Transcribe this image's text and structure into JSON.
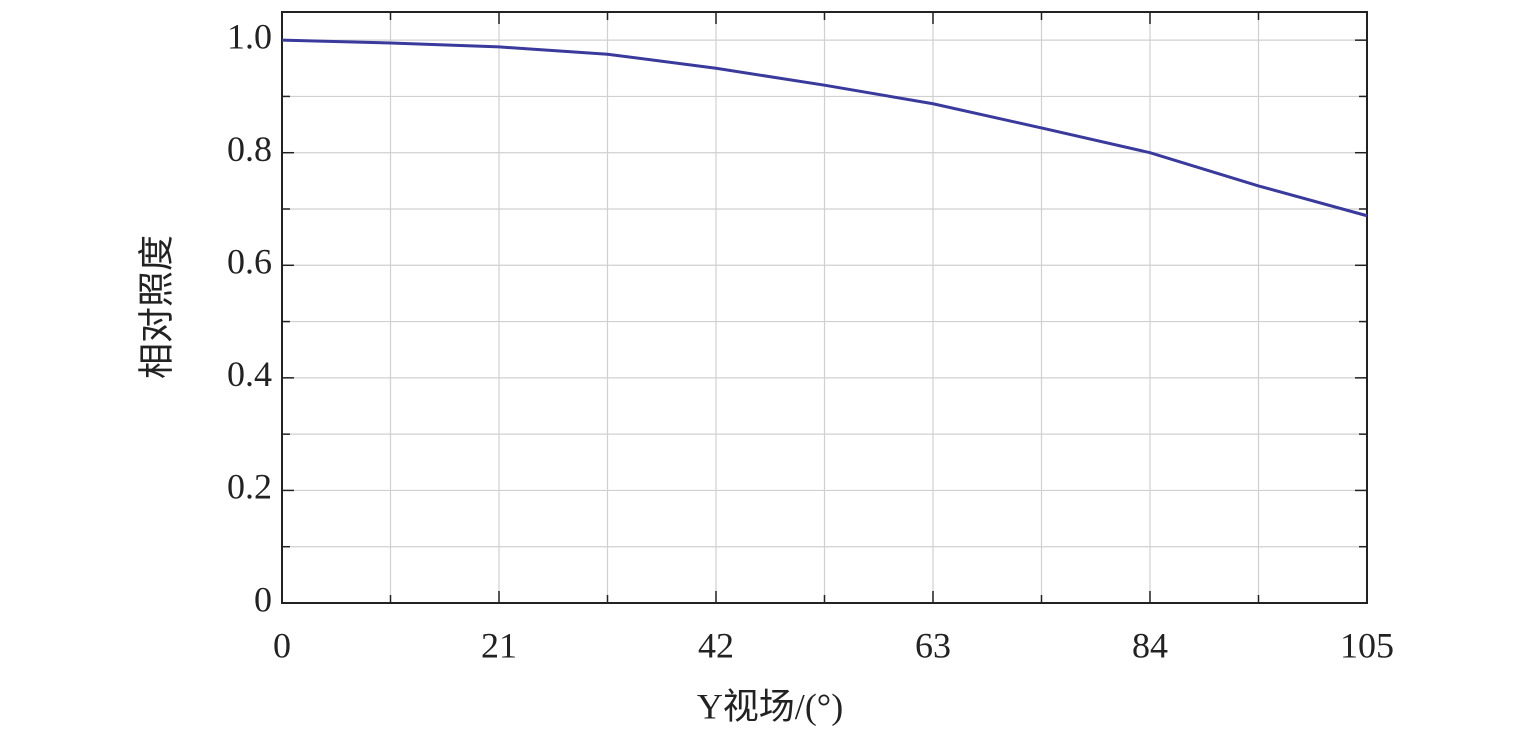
{
  "chart_data": {
    "type": "line",
    "x_label": "Y视场/(°)",
    "y_label": "相对照度",
    "x": [
      0,
      10.5,
      21,
      31.5,
      42,
      52.5,
      63,
      73.5,
      84,
      94.5,
      105
    ],
    "series": [
      {
        "color": "#3a3a9c",
        "values": [
          1.0,
          0.995,
          0.988,
          0.975,
          0.95,
          0.92,
          0.887,
          0.844,
          0.8,
          0.741,
          0.688
        ]
      }
    ],
    "xlim": [
      0,
      105
    ],
    "ylim": [
      0,
      1.05
    ],
    "xticks": [
      0,
      21,
      42,
      63,
      84,
      105
    ],
    "x_minor_ticks": [
      10.5,
      31.5,
      52.5,
      73.5,
      94.5
    ],
    "yticks": [
      0,
      0.2,
      0.4,
      0.6,
      0.8,
      {
        "value": 1,
        "label": "1.0"
      }
    ],
    "y_minor_ticks": [
      0.1,
      0.3,
      0.5,
      0.7,
      0.9
    ],
    "grid": true
  }
}
